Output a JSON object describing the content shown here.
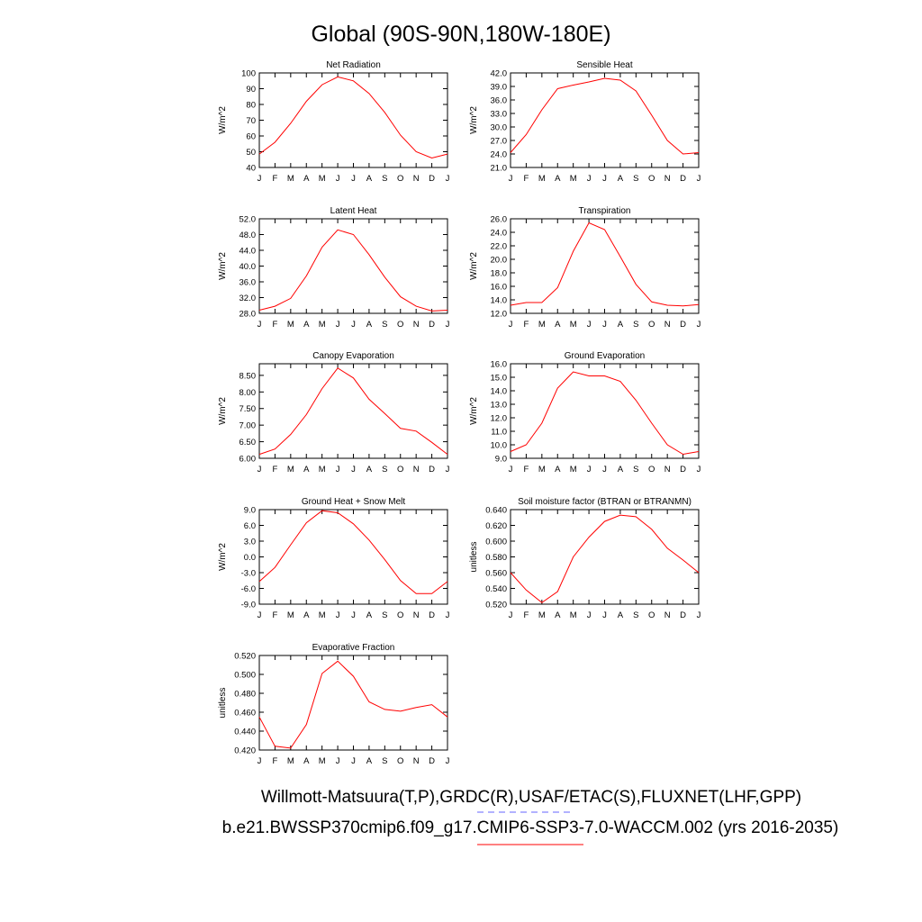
{
  "title": "Global (90S-90N,180W-180E)",
  "months": [
    "J",
    "F",
    "M",
    "A",
    "M",
    "J",
    "J",
    "A",
    "S",
    "O",
    "N",
    "D",
    "J"
  ],
  "legend": {
    "obs_label": "Willmott-Matsuura(T,P),GRDC(R),USAF/ETAC(S),FLUXNET(LHF,GPP)",
    "obs_color": "#6666ff",
    "model_label": "b.e21.BWSSP370cmip6.f09_g17.CMIP6-SSP3-7.0-WACCM.002 (yrs 2016-2035)",
    "model_color": "#ff0000"
  },
  "chart_data": [
    {
      "type": "line",
      "title": "Net Radiation",
      "ylabel": "W/m^2",
      "ylim": [
        40,
        100
      ],
      "yticks": [
        "40",
        "50",
        "60",
        "70",
        "80",
        "90",
        "100"
      ],
      "series": [
        {
          "name": "model",
          "color": "#ff0000",
          "values": [
            48.5,
            56,
            68,
            82,
            92.5,
            97.5,
            95,
            87,
            75,
            60.5,
            50,
            46,
            48.5
          ]
        }
      ]
    },
    {
      "type": "line",
      "title": "Sensible Heat",
      "ylabel": "W/m^2",
      "ylim": [
        21,
        42
      ],
      "yticks": [
        "21.0",
        "24.0",
        "27.0",
        "30.0",
        "33.0",
        "36.0",
        "39.0",
        "42.0"
      ],
      "series": [
        {
          "name": "model",
          "color": "#ff0000",
          "values": [
            24.3,
            28.3,
            33.8,
            38.5,
            39.3,
            40,
            40.8,
            40.4,
            38,
            32.6,
            27,
            24,
            24.3
          ]
        }
      ]
    },
    {
      "type": "line",
      "title": "Latent Heat",
      "ylabel": "W/m^2",
      "ylim": [
        28,
        52
      ],
      "yticks": [
        "28.0",
        "32.0",
        "36.0",
        "40.0",
        "44.0",
        "48.0",
        "52.0"
      ],
      "series": [
        {
          "name": "model",
          "color": "#ff0000",
          "values": [
            28.8,
            29.8,
            31.8,
            37.5,
            44.8,
            49.2,
            48,
            42.9,
            37.2,
            32.2,
            29.8,
            28.6,
            28.8
          ]
        }
      ]
    },
    {
      "type": "line",
      "title": "Transpiration",
      "ylabel": "W/m^2",
      "ylim": [
        12,
        26
      ],
      "yticks": [
        "12.0",
        "14.0",
        "16.0",
        "18.0",
        "20.0",
        "22.0",
        "24.0",
        "26.0"
      ],
      "series": [
        {
          "name": "model",
          "color": "#ff0000",
          "values": [
            13.2,
            13.6,
            13.6,
            15.8,
            21.2,
            25.4,
            24.4,
            20.4,
            16.3,
            13.7,
            13.2,
            13.1,
            13.3
          ]
        }
      ]
    },
    {
      "type": "line",
      "title": "Canopy Evaporation",
      "ylabel": "W/m^2",
      "ylim": [
        6,
        8.85
      ],
      "yticks": [
        "6.00",
        "6.50",
        "7.00",
        "7.50",
        "8.00",
        "8.50"
      ],
      "series": [
        {
          "name": "model",
          "color": "#ff0000",
          "values": [
            6.12,
            6.28,
            6.72,
            7.32,
            8.1,
            8.72,
            8.42,
            7.78,
            7.35,
            6.9,
            6.82,
            6.48,
            6.12
          ]
        }
      ]
    },
    {
      "type": "line",
      "title": "Ground Evaporation",
      "ylabel": "W/m^2",
      "ylim": [
        9,
        16
      ],
      "yticks": [
        "9.0",
        "10.0",
        "11.0",
        "12.0",
        "13.0",
        "14.0",
        "15.0",
        "16.0"
      ],
      "series": [
        {
          "name": "model",
          "color": "#ff0000",
          "values": [
            9.5,
            10,
            11.6,
            14.2,
            15.4,
            15.1,
            15.1,
            14.7,
            13.3,
            11.6,
            10,
            9.3,
            9.5
          ]
        }
      ]
    },
    {
      "type": "line",
      "title": "Ground Heat + Snow Melt",
      "ylabel": "W/m^2",
      "ylim": [
        -9,
        9
      ],
      "yticks": [
        "-9.0",
        "-6.0",
        "-3.0",
        "0.0",
        "3.0",
        "6.0",
        "9.0"
      ],
      "series": [
        {
          "name": "model",
          "color": "#ff0000",
          "values": [
            -4.7,
            -2,
            2.3,
            6.5,
            8.8,
            8.4,
            6.3,
            3.2,
            -0.5,
            -4.5,
            -7,
            -7,
            -4.7
          ]
        }
      ]
    },
    {
      "type": "line",
      "title": "Soil moisture factor (BTRAN or BTRANMN)",
      "ylabel": "unitless",
      "ylim": [
        0.52,
        0.64
      ],
      "yticks": [
        "0.520",
        "0.540",
        "0.560",
        "0.580",
        "0.600",
        "0.620",
        "0.640"
      ],
      "series": [
        {
          "name": "model",
          "color": "#ff0000",
          "values": [
            0.56,
            0.538,
            0.522,
            0.536,
            0.58,
            0.605,
            0.625,
            0.633,
            0.631,
            0.615,
            0.591,
            0.576,
            0.56
          ]
        }
      ]
    },
    {
      "type": "line",
      "title": "Evaporative Fraction",
      "ylabel": "unitless",
      "ylim": [
        0.42,
        0.52
      ],
      "yticks": [
        "0.420",
        "0.440",
        "0.460",
        "0.480",
        "0.500",
        "0.520"
      ],
      "series": [
        {
          "name": "model",
          "color": "#ff0000",
          "values": [
            0.455,
            0.424,
            0.422,
            0.447,
            0.501,
            0.514,
            0.498,
            0.471,
            0.463,
            0.461,
            0.465,
            0.468,
            0.455
          ]
        }
      ]
    }
  ]
}
